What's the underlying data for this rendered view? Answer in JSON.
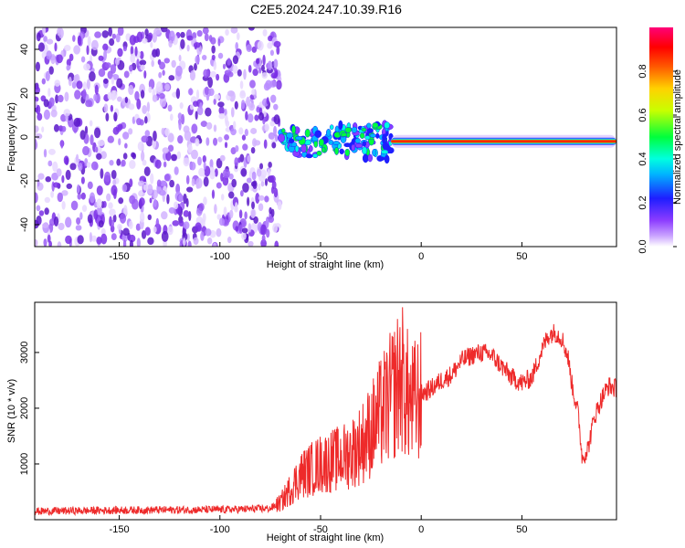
{
  "title": "C2E5.2024.247.10.39.R16",
  "colors": {
    "snr_line": "#ee2a2a",
    "noise": "#8a2be2",
    "background": "#ffffff"
  },
  "chart_data": [
    {
      "type": "heatmap",
      "xlabel": "Height of straight line (km)",
      "ylabel": "Frequency (Hz)",
      "xlim": [
        -192,
        97
      ],
      "ylim": [
        -50,
        50
      ],
      "xticks": [
        -150,
        -100,
        -50,
        0,
        50
      ],
      "yticks": [
        -40,
        -20,
        0,
        20,
        40
      ],
      "colorbar": {
        "label": "Normalized spectral amplitude",
        "ticks": [
          0.0,
          0.2,
          0.4,
          0.6,
          0.8
        ],
        "range": [
          0,
          1
        ],
        "colormap": "rainbow (violet-blue-cyan-green-yellow-red-magenta)"
      },
      "features": {
        "noise_region_x": [
          -192,
          -70
        ],
        "signal_band_frequency_hz": -2,
        "strong_signal_x": [
          -15,
          97
        ],
        "scattered_signal_x": [
          -70,
          -15
        ]
      }
    },
    {
      "type": "line",
      "xlabel": "Height of straight line (km)",
      "ylabel": "SNR (10 * v/v)",
      "xlim": [
        -192,
        97
      ],
      "ylim": [
        0,
        3900
      ],
      "xticks": [
        -150,
        -100,
        -50,
        0,
        50
      ],
      "yticks": [
        1000,
        2000,
        3000
      ],
      "series": [
        {
          "x": [
            -192,
            -150,
            -100,
            -75,
            -70,
            -65,
            -60,
            -55,
            -50,
            -45,
            -40,
            -35,
            -30,
            -25,
            -20,
            -15,
            -12,
            -10,
            -8,
            -5,
            -2,
            0,
            5,
            10,
            15,
            20,
            25,
            30,
            35,
            40,
            45,
            50,
            55,
            60,
            63,
            65,
            67,
            70,
            73,
            75,
            78,
            80,
            83,
            86,
            90,
            93,
            97
          ],
          "y": [
            150,
            170,
            180,
            200,
            300,
            550,
            800,
            900,
            1000,
            1050,
            1100,
            1200,
            1350,
            1600,
            1900,
            2200,
            2400,
            2600,
            2350,
            2050,
            2150,
            2250,
            2350,
            2500,
            2600,
            2850,
            2950,
            3000,
            2950,
            2750,
            2550,
            2450,
            2550,
            3050,
            3300,
            3350,
            3350,
            3250,
            2900,
            2400,
            1900,
            1100,
            1300,
            1850,
            2200,
            2400,
            2350
          ]
        }
      ]
    }
  ]
}
